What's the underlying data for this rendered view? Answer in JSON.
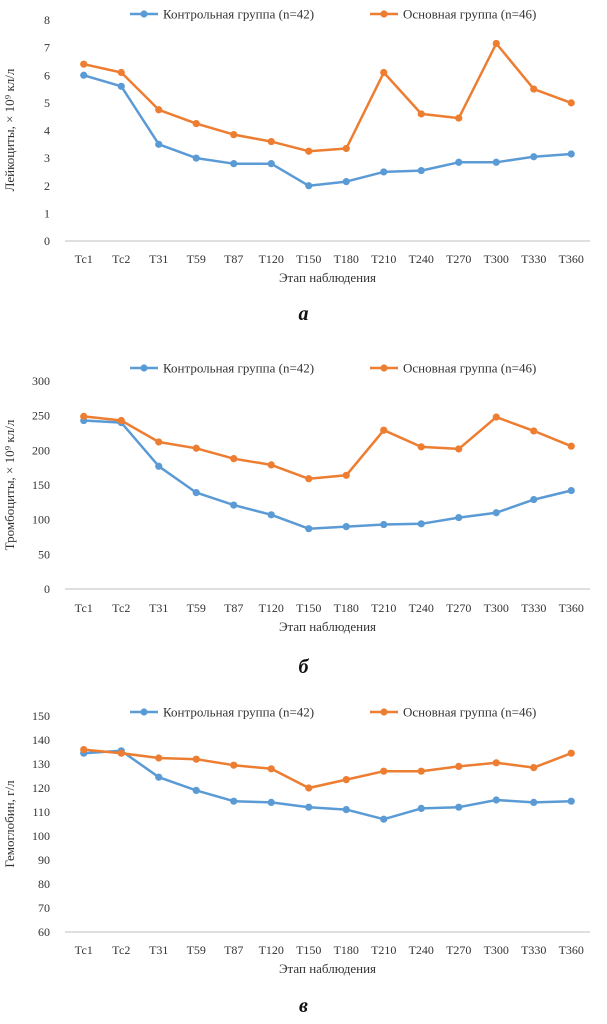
{
  "colors": {
    "control": "#5B9BD5",
    "main": "#ED7D31"
  },
  "chart_data": [
    {
      "type": "line",
      "caption": "а",
      "title": "",
      "xlabel": "Этап наблюдения",
      "ylabel": "Лейкоциты, × 10⁹ кл/л",
      "ylim": [
        0,
        8
      ],
      "yticks": [
        "0",
        "1",
        "2",
        "3",
        "4",
        "5",
        "6",
        "7",
        "8"
      ],
      "categories": [
        "Тс1",
        "Тс2",
        "Т31",
        "Т59",
        "Т87",
        "Т120",
        "Т150",
        "Т180",
        "Т210",
        "Т240",
        "Т270",
        "Т300",
        "Т330",
        "Т360"
      ],
      "grid": false,
      "legend": "top",
      "series": [
        {
          "name": "Контрольная группа (n=42)",
          "values": [
            6.0,
            5.6,
            3.5,
            3.0,
            2.8,
            2.8,
            2.0,
            2.15,
            2.5,
            2.55,
            2.85,
            2.85,
            3.05,
            3.15
          ]
        },
        {
          "name": "Основная группа (n=46)",
          "values": [
            6.4,
            6.1,
            4.75,
            4.25,
            3.85,
            3.6,
            3.25,
            3.35,
            6.1,
            4.6,
            4.45,
            7.15,
            5.5,
            5.0
          ]
        }
      ]
    },
    {
      "type": "line",
      "caption": "б",
      "title": "",
      "xlabel": "Этап наблюдения",
      "ylabel": "Тромбоциты, × 10⁹ кл/л",
      "ylim": [
        0,
        300
      ],
      "yticks": [
        "0",
        "50",
        "100",
        "150",
        "200",
        "250",
        "300"
      ],
      "categories": [
        "Тс1",
        "Тс2",
        "Т31",
        "Т59",
        "Т87",
        "Т120",
        "Т150",
        "Т180",
        "Т210",
        "Т240",
        "Т270",
        "Т300",
        "Т330",
        "Т360"
      ],
      "grid": false,
      "legend": "top",
      "series": [
        {
          "name": "Контрольная группа (n=42)",
          "values": [
            243,
            240,
            177,
            139,
            121,
            107,
            87,
            90,
            93,
            94,
            103,
            110,
            129,
            142
          ]
        },
        {
          "name": "Основная группа (n=46)",
          "values": [
            249,
            243,
            212,
            203,
            188,
            179,
            159,
            164,
            229,
            205,
            202,
            248,
            228,
            206
          ]
        }
      ]
    },
    {
      "type": "line",
      "caption": "в",
      "title": "",
      "xlabel": "Этап наблюдения",
      "ylabel": "Гемоглобин, г/л",
      "ylim": [
        60,
        150
      ],
      "yticks": [
        "60",
        "70",
        "80",
        "90",
        "100",
        "110",
        "120",
        "130",
        "140",
        "150"
      ],
      "categories": [
        "Тс1",
        "Тс2",
        "Т31",
        "Т59",
        "Т87",
        "Т120",
        "Т150",
        "Т180",
        "Т210",
        "Т240",
        "Т270",
        "Т300",
        "Т330",
        "Т360"
      ],
      "grid": false,
      "legend": "top",
      "series": [
        {
          "name": "Контрольная группа (n=42)",
          "values": [
            134.5,
            135.5,
            124.5,
            119,
            114.5,
            114,
            112,
            111,
            107,
            111.5,
            112,
            115,
            114,
            114.5
          ]
        },
        {
          "name": "Основная группа (n=46)",
          "values": [
            136,
            134.5,
            132.5,
            132,
            129.5,
            128,
            120,
            123.5,
            127,
            127,
            129,
            130.5,
            128.5,
            134.5
          ]
        }
      ]
    }
  ]
}
